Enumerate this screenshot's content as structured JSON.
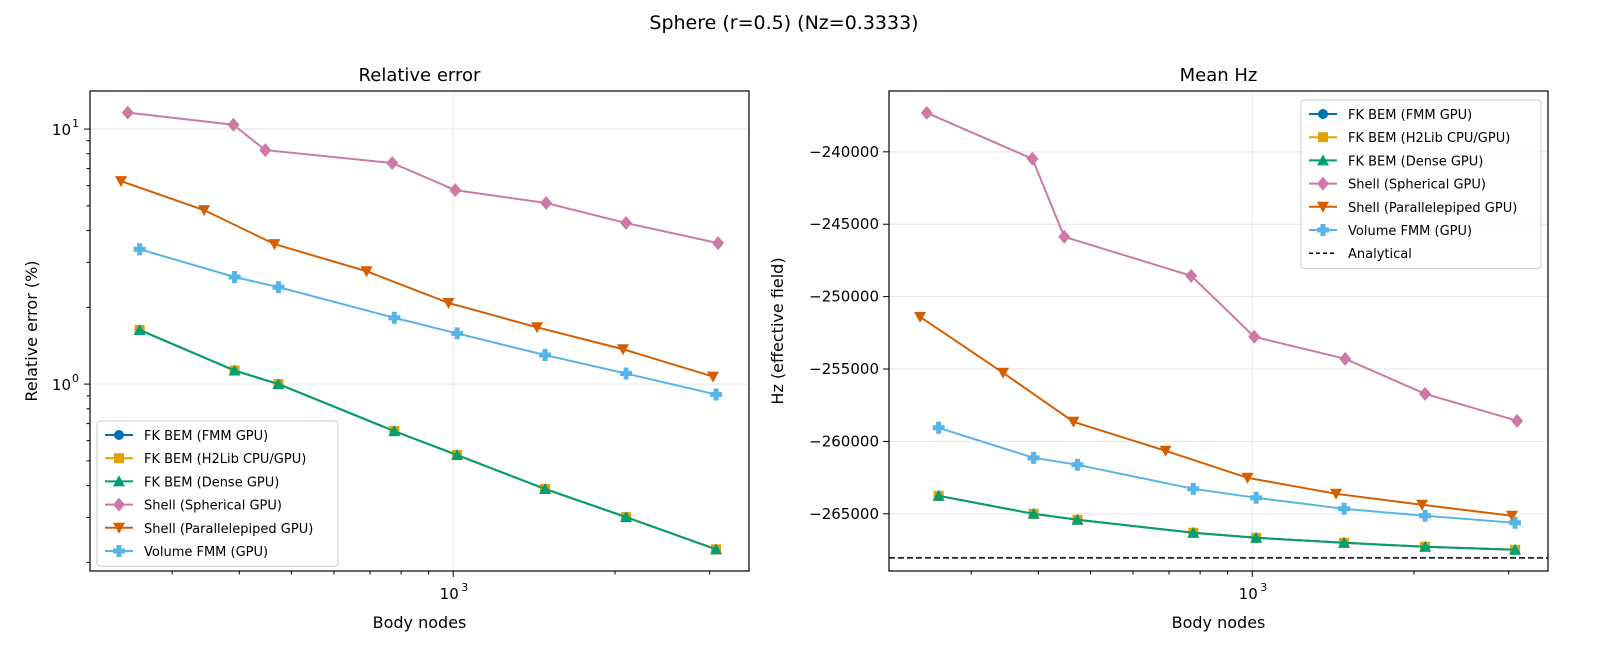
{
  "suptitle": "Sphere (r=0.5)  (Nz=0.3333)",
  "colors": {
    "fmm": "#0072B2",
    "h2lib": "#E69F00",
    "dense": "#009E73",
    "spherical": "#CC79A7",
    "parallelepiped": "#D55E00",
    "volume": "#56B4E9",
    "analytical": "#000000"
  },
  "chart_data": [
    {
      "type": "line",
      "title": "Relative error",
      "xlabel": "Body nodes",
      "ylabel": "Relative error (%)",
      "xscale": "log",
      "yscale": "log",
      "xlim": [
        211,
        3550
      ],
      "ylim": [
        0.185,
        14.1
      ],
      "xticks": [
        {
          "value": 1000,
          "base": "10",
          "exp": "3"
        }
      ],
      "yticks": [
        {
          "value": 1,
          "base": "10",
          "exp": "0"
        },
        {
          "value": 10,
          "base": "10",
          "exp": "1"
        }
      ],
      "grid": true,
      "legend": "lower-left",
      "series": [
        {
          "name": "FK BEM (FMM GPU)",
          "key": "fmm",
          "marker": "circle",
          "x": [
            261,
            392,
            473,
            777,
            1017,
            1482,
            2097,
            3083
          ],
          "y": [
            1.63,
            1.13,
            1.0,
            0.654,
            0.527,
            0.388,
            0.301,
            0.225
          ]
        },
        {
          "name": "FK BEM (H2Lib CPU/GPU)",
          "key": "h2lib",
          "marker": "square",
          "x": [
            261,
            392,
            473,
            777,
            1017,
            1482,
            2097,
            3083
          ],
          "y": [
            1.63,
            1.13,
            1.0,
            0.654,
            0.527,
            0.388,
            0.301,
            0.225
          ]
        },
        {
          "name": "FK BEM (Dense GPU)",
          "key": "dense",
          "marker": "triangle-up",
          "x": [
            261,
            392,
            473,
            777,
            1017,
            1482,
            2097,
            3083
          ],
          "y": [
            1.63,
            1.13,
            1.0,
            0.654,
            0.527,
            0.388,
            0.301,
            0.225
          ]
        },
        {
          "name": "Shell (Spherical GPU)",
          "key": "spherical",
          "marker": "diamond",
          "x": [
            248,
            390,
            447,
            770,
            1009,
            1489,
            2097,
            3110
          ],
          "y": [
            11.6,
            10.4,
            8.27,
            7.36,
            5.76,
            5.13,
            4.28,
            3.57
          ]
        },
        {
          "name": "Shell (Parallelepiped GPU)",
          "key": "parallelepiped",
          "marker": "triangle-down",
          "x": [
            241,
            344,
            465,
            690,
            980,
            1432,
            2070,
            3043
          ],
          "y": [
            6.25,
            4.81,
            3.54,
            2.77,
            2.08,
            1.67,
            1.37,
            1.07
          ]
        },
        {
          "name": "Volume FMM (GPU)",
          "key": "volume",
          "marker": "plus",
          "x": [
            261,
            392,
            473,
            777,
            1017,
            1482,
            2097,
            3083
          ],
          "y": [
            3.38,
            2.63,
            2.4,
            1.82,
            1.58,
            1.3,
            1.1,
            0.91
          ]
        }
      ]
    },
    {
      "type": "line",
      "title": "Mean Hz",
      "xlabel": "Body nodes",
      "ylabel": "Hz (effective field)",
      "xscale": "log",
      "yscale": "linear",
      "xlim": [
        211,
        3550
      ],
      "ylim": [
        -268950,
        -235800
      ],
      "xticks": [
        {
          "value": 1000,
          "base": "10",
          "exp": "3"
        }
      ],
      "yticks": [
        {
          "value": -265000,
          "label": "−265000"
        },
        {
          "value": -260000,
          "label": "−260000"
        },
        {
          "value": -255000,
          "label": "−255000"
        },
        {
          "value": -250000,
          "label": "−250000"
        },
        {
          "value": -245000,
          "label": "−245000"
        },
        {
          "value": -240000,
          "label": "−240000"
        }
      ],
      "grid": true,
      "legend": "upper-right",
      "series": [
        {
          "name": "FK BEM (FMM GPU)",
          "key": "fmm",
          "marker": "circle",
          "x": [
            261,
            392,
            473,
            777,
            1017,
            1482,
            2097,
            3083
          ],
          "y": [
            -263757,
            -265000,
            -265414,
            -266312,
            -266657,
            -267003,
            -267279,
            -267486
          ]
        },
        {
          "name": "FK BEM (H2Lib CPU/GPU)",
          "key": "h2lib",
          "marker": "square",
          "x": [
            261,
            392,
            473,
            777,
            1017,
            1482,
            2097,
            3083
          ],
          "y": [
            -263757,
            -265000,
            -265414,
            -266312,
            -266657,
            -267003,
            -267279,
            -267486
          ]
        },
        {
          "name": "FK BEM (Dense GPU)",
          "key": "dense",
          "marker": "triangle-up",
          "x": [
            261,
            392,
            473,
            777,
            1017,
            1482,
            2097,
            3083
          ],
          "y": [
            -263757,
            -265000,
            -265414,
            -266312,
            -266657,
            -267003,
            -267279,
            -267486
          ]
        },
        {
          "name": "Shell (Spherical GPU)",
          "key": "spherical",
          "marker": "diamond",
          "x": [
            248,
            390,
            447,
            770,
            1009,
            1489,
            2097,
            3110
          ],
          "y": [
            -237307,
            -240483,
            -245870,
            -248564,
            -252776,
            -254296,
            -256713,
            -258578
          ]
        },
        {
          "name": "Shell (Parallelepiped GPU)",
          "key": "parallelepiped",
          "marker": "triangle-down",
          "x": [
            241,
            344,
            465,
            690,
            980,
            1432,
            2070,
            3043
          ],
          "y": [
            -251396,
            -255262,
            -258646,
            -260649,
            -262514,
            -263619,
            -264378,
            -265138
          ]
        },
        {
          "name": "Volume FMM (GPU)",
          "key": "volume",
          "marker": "plus",
          "x": [
            261,
            392,
            473,
            777,
            1017,
            1482,
            2097,
            3083
          ],
          "y": [
            -259061,
            -261133,
            -261616,
            -263274,
            -263895,
            -264655,
            -265138,
            -265622
          ]
        },
        {
          "name": "Analytical",
          "key": "analytical",
          "marker": "none",
          "dashed": true,
          "hline": -268040
        }
      ]
    }
  ]
}
